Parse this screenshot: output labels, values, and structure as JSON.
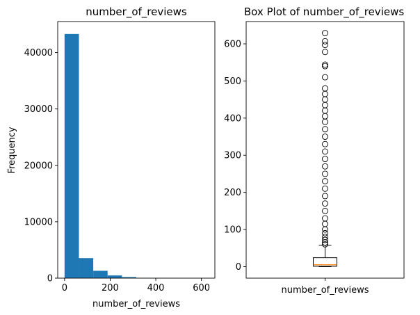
{
  "chart_data": [
    {
      "type": "bar",
      "title": "number_of_reviews",
      "xlabel": "number_of_reviews",
      "ylabel": "Frequency",
      "xlim": [
        -30,
        659
      ],
      "ylim": [
        0,
        45500
      ],
      "bin_edges": [
        0,
        62.9,
        125.8,
        188.7,
        251.6,
        314.5,
        377.4,
        440.3,
        503.2,
        566.1,
        629
      ],
      "values": [
        43300,
        3550,
        1300,
        480,
        190,
        60,
        30,
        12,
        4,
        2
      ],
      "color": "#1f77b4",
      "xticks": [
        0,
        200,
        400,
        600
      ],
      "xtick_labels": [
        "0",
        "200",
        "400",
        "600"
      ],
      "yticks": [
        0,
        10000,
        20000,
        30000,
        40000
      ],
      "ytick_labels": [
        "0",
        "10000",
        "20000",
        "30000",
        "40000"
      ],
      "grid": false
    },
    {
      "type": "box",
      "title": "Box Plot of number_of_reviews",
      "categories": [
        "number_of_reviews"
      ],
      "ylim": [
        -31,
        660
      ],
      "box": {
        "whisker_low": 0,
        "q1": 1,
        "median": 5,
        "q3": 24,
        "whisker_high": 58
      },
      "outliers": [
        60,
        65,
        72,
        80,
        90,
        100,
        115,
        130,
        150,
        170,
        190,
        210,
        230,
        250,
        270,
        290,
        310,
        330,
        350,
        370,
        390,
        405,
        420,
        435,
        450,
        465,
        480,
        510,
        540,
        544,
        578,
        597,
        607,
        629
      ],
      "median_color": "#ff7f0e",
      "yticks": [
        0,
        100,
        200,
        300,
        400,
        500,
        600
      ],
      "ytick_labels": [
        "0",
        "100",
        "200",
        "300",
        "400",
        "500",
        "600"
      ],
      "grid": false
    }
  ]
}
